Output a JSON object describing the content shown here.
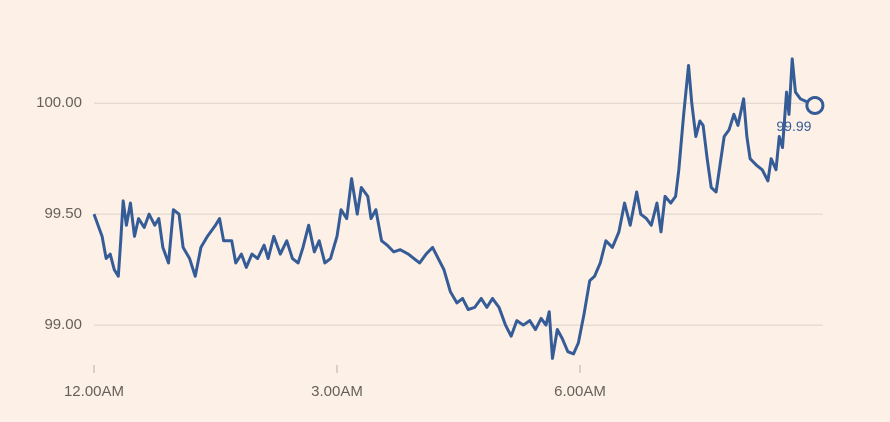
{
  "chart_data": {
    "type": "line",
    "series": [
      {
        "color": "#355c96",
        "x": [
          0.0,
          0.1,
          0.15,
          0.2,
          0.25,
          0.3,
          0.33,
          0.36,
          0.4,
          0.45,
          0.5,
          0.55,
          0.62,
          0.68,
          0.75,
          0.8,
          0.85,
          0.92,
          0.98,
          1.05,
          1.1,
          1.18,
          1.25,
          1.32,
          1.4,
          1.5,
          1.55,
          1.6,
          1.7,
          1.75,
          1.82,
          1.88,
          1.95,
          2.02,
          2.1,
          2.15,
          2.22,
          2.3,
          2.38,
          2.45,
          2.52,
          2.58,
          2.65,
          2.72,
          2.78,
          2.85,
          2.92,
          3.0,
          3.05,
          3.12,
          3.18,
          3.25,
          3.3,
          3.38,
          3.42,
          3.48,
          3.55,
          3.62,
          3.7,
          3.78,
          3.88,
          3.95,
          4.02,
          4.1,
          4.18,
          4.25,
          4.32,
          4.4,
          4.48,
          4.55,
          4.62,
          4.7,
          4.78,
          4.85,
          4.92,
          5.0,
          5.08,
          5.15,
          5.22,
          5.3,
          5.38,
          5.45,
          5.52,
          5.58,
          5.62,
          5.66,
          5.72,
          5.78,
          5.85,
          5.92,
          5.98,
          6.05,
          6.12,
          6.18,
          6.25,
          6.32,
          6.4,
          6.48,
          6.55,
          6.62,
          6.7,
          6.75,
          6.82,
          6.88,
          6.95,
          7.0,
          7.05,
          7.12,
          7.18,
          7.22,
          7.28,
          7.34,
          7.38,
          7.43,
          7.48,
          7.52,
          7.57,
          7.62,
          7.68,
          7.72,
          7.78,
          7.84,
          7.9,
          7.95,
          8.02,
          8.06,
          8.1,
          8.18,
          8.25,
          8.32,
          8.36,
          8.42,
          8.46,
          8.5,
          8.55,
          8.58,
          8.62,
          8.66,
          8.72,
          8.9
        ],
        "values": [
          99.5,
          99.4,
          99.3,
          99.32,
          99.25,
          99.22,
          99.38,
          99.56,
          99.45,
          99.55,
          99.4,
          99.48,
          99.44,
          99.5,
          99.45,
          99.48,
          99.35,
          99.28,
          99.52,
          99.5,
          99.35,
          99.3,
          99.22,
          99.35,
          99.4,
          99.45,
          99.48,
          99.38,
          99.38,
          99.28,
          99.32,
          99.26,
          99.32,
          99.3,
          99.36,
          99.3,
          99.4,
          99.32,
          99.38,
          99.3,
          99.28,
          99.35,
          99.45,
          99.33,
          99.38,
          99.28,
          99.3,
          99.4,
          99.52,
          99.48,
          99.66,
          99.5,
          99.62,
          99.58,
          99.48,
          99.52,
          99.38,
          99.36,
          99.33,
          99.34,
          99.32,
          99.3,
          99.28,
          99.32,
          99.35,
          99.3,
          99.25,
          99.15,
          99.1,
          99.12,
          99.07,
          99.08,
          99.12,
          99.08,
          99.12,
          99.08,
          99.0,
          98.95,
          99.02,
          99.0,
          99.02,
          98.98,
          99.03,
          99.0,
          99.06,
          98.85,
          98.98,
          98.94,
          98.88,
          98.87,
          98.92,
          99.05,
          99.2,
          99.22,
          99.28,
          99.38,
          99.35,
          99.42,
          99.55,
          99.45,
          99.6,
          99.5,
          99.48,
          99.45,
          99.55,
          99.42,
          99.58,
          99.55,
          99.58,
          99.7,
          99.95,
          100.17,
          100.0,
          99.85,
          99.92,
          99.9,
          99.75,
          99.62,
          99.6,
          99.7,
          99.85,
          99.88,
          99.95,
          99.9,
          100.02,
          99.85,
          99.75,
          99.72,
          99.7,
          99.65,
          99.75,
          99.7,
          99.85,
          99.8,
          100.05,
          99.95,
          100.2,
          100.05,
          100.02,
          99.99
        ]
      }
    ],
    "xlim": [
      0,
      9
    ],
    "xticks": [
      {
        "value": 0,
        "label": "12.00AM"
      },
      {
        "value": 3,
        "label": "3.00AM"
      },
      {
        "value": 6,
        "label": "6.00AM"
      }
    ],
    "ylim": [
      98.82,
      100.24
    ],
    "yticks": [
      {
        "value": 99,
        "label": "99.00"
      },
      {
        "value": 99.5,
        "label": "99.50"
      },
      {
        "value": 100,
        "label": "100.00"
      }
    ],
    "grid": true
  }
}
